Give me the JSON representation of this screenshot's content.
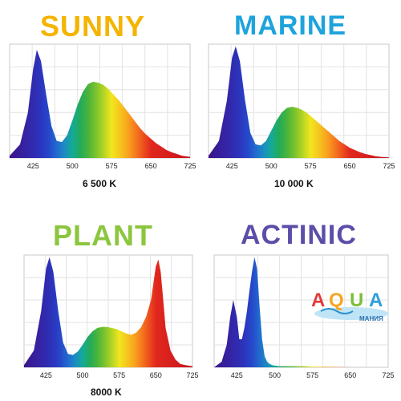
{
  "chart_data": [
    {
      "type": "area",
      "title": "SUNNY",
      "title_color": "#f4b400",
      "xlabel": "",
      "ylabel": "",
      "x_ticks": [
        425,
        500,
        575,
        650,
        725
      ],
      "xlim": [
        380,
        725
      ],
      "ylim": [
        0,
        1
      ],
      "grid": true,
      "caption": "6 500 K",
      "series": [
        {
          "x": [
            380,
            400,
            415,
            425,
            432,
            440,
            450,
            460,
            470,
            480,
            490,
            500,
            510,
            520,
            530,
            540,
            550,
            560,
            570,
            580,
            590,
            600,
            610,
            620,
            630,
            640,
            650,
            660,
            670,
            680,
            690,
            700,
            710,
            725
          ],
          "values": [
            0.02,
            0.12,
            0.4,
            0.78,
            0.95,
            0.85,
            0.55,
            0.28,
            0.15,
            0.14,
            0.2,
            0.33,
            0.47,
            0.58,
            0.65,
            0.67,
            0.66,
            0.64,
            0.6,
            0.55,
            0.5,
            0.44,
            0.38,
            0.32,
            0.26,
            0.21,
            0.17,
            0.13,
            0.1,
            0.07,
            0.05,
            0.035,
            0.02,
            0.01
          ]
        }
      ]
    },
    {
      "type": "area",
      "title": "MARINE",
      "title_color": "#1ea3dc",
      "xlabel": "",
      "ylabel": "",
      "x_ticks": [
        425,
        500,
        575,
        650,
        725
      ],
      "xlim": [
        380,
        725
      ],
      "ylim": [
        0,
        1
      ],
      "grid": true,
      "caption": "10 000 K",
      "series": [
        {
          "x": [
            380,
            400,
            415,
            425,
            432,
            440,
            450,
            460,
            470,
            480,
            490,
            500,
            510,
            520,
            530,
            540,
            550,
            560,
            570,
            580,
            590,
            600,
            610,
            620,
            630,
            640,
            650,
            660,
            670,
            680,
            690,
            700,
            710,
            725
          ],
          "values": [
            0.02,
            0.15,
            0.5,
            0.88,
            0.98,
            0.85,
            0.5,
            0.22,
            0.12,
            0.11,
            0.15,
            0.24,
            0.33,
            0.4,
            0.44,
            0.45,
            0.44,
            0.42,
            0.39,
            0.35,
            0.31,
            0.27,
            0.23,
            0.19,
            0.15,
            0.12,
            0.09,
            0.07,
            0.05,
            0.035,
            0.025,
            0.015,
            0.01,
            0.005
          ]
        }
      ]
    },
    {
      "type": "area",
      "title": "PLANT",
      "title_color": "#8cc63f",
      "xlabel": "",
      "ylabel": "",
      "x_ticks": [
        425,
        500,
        575,
        650,
        725
      ],
      "xlim": [
        380,
        725
      ],
      "ylim": [
        0,
        1
      ],
      "grid": true,
      "caption": "8000 K",
      "series": [
        {
          "x": [
            380,
            400,
            415,
            425,
            432,
            440,
            450,
            460,
            470,
            480,
            490,
            500,
            510,
            520,
            530,
            540,
            550,
            560,
            570,
            580,
            590,
            600,
            610,
            620,
            630,
            640,
            645,
            650,
            655,
            660,
            665,
            670,
            680,
            690,
            700,
            710,
            725
          ],
          "values": [
            0.02,
            0.15,
            0.5,
            0.88,
            0.98,
            0.85,
            0.5,
            0.22,
            0.12,
            0.11,
            0.14,
            0.2,
            0.27,
            0.32,
            0.35,
            0.36,
            0.36,
            0.35,
            0.34,
            0.32,
            0.3,
            0.29,
            0.31,
            0.36,
            0.45,
            0.6,
            0.75,
            0.9,
            0.96,
            0.85,
            0.6,
            0.35,
            0.15,
            0.07,
            0.03,
            0.02,
            0.01
          ]
        }
      ]
    },
    {
      "type": "area",
      "title": "ACTINIC",
      "title_color": "#5b4ea8",
      "xlabel": "",
      "ylabel": "",
      "x_ticks": [
        425,
        500,
        575,
        650,
        725
      ],
      "xlim": [
        380,
        725
      ],
      "ylim": [
        0,
        1
      ],
      "grid": true,
      "caption": "",
      "series": [
        {
          "x": [
            380,
            395,
            405,
            412,
            418,
            425,
            430,
            435,
            440,
            445,
            450,
            455,
            460,
            465,
            470,
            475,
            480,
            485,
            490,
            495,
            500,
            510,
            520,
            540,
            560,
            580,
            600,
            650,
            725
          ],
          "values": [
            0.0,
            0.05,
            0.2,
            0.45,
            0.6,
            0.45,
            0.25,
            0.25,
            0.35,
            0.5,
            0.68,
            0.85,
            0.98,
            0.88,
            0.55,
            0.25,
            0.1,
            0.05,
            0.03,
            0.02,
            0.015,
            0.01,
            0.01,
            0.01,
            0.01,
            0.005,
            0.005,
            0.0,
            0.0
          ]
        }
      ]
    }
  ],
  "logo": {
    "word": "AQUA",
    "subtitle": "МАНИЯ"
  }
}
